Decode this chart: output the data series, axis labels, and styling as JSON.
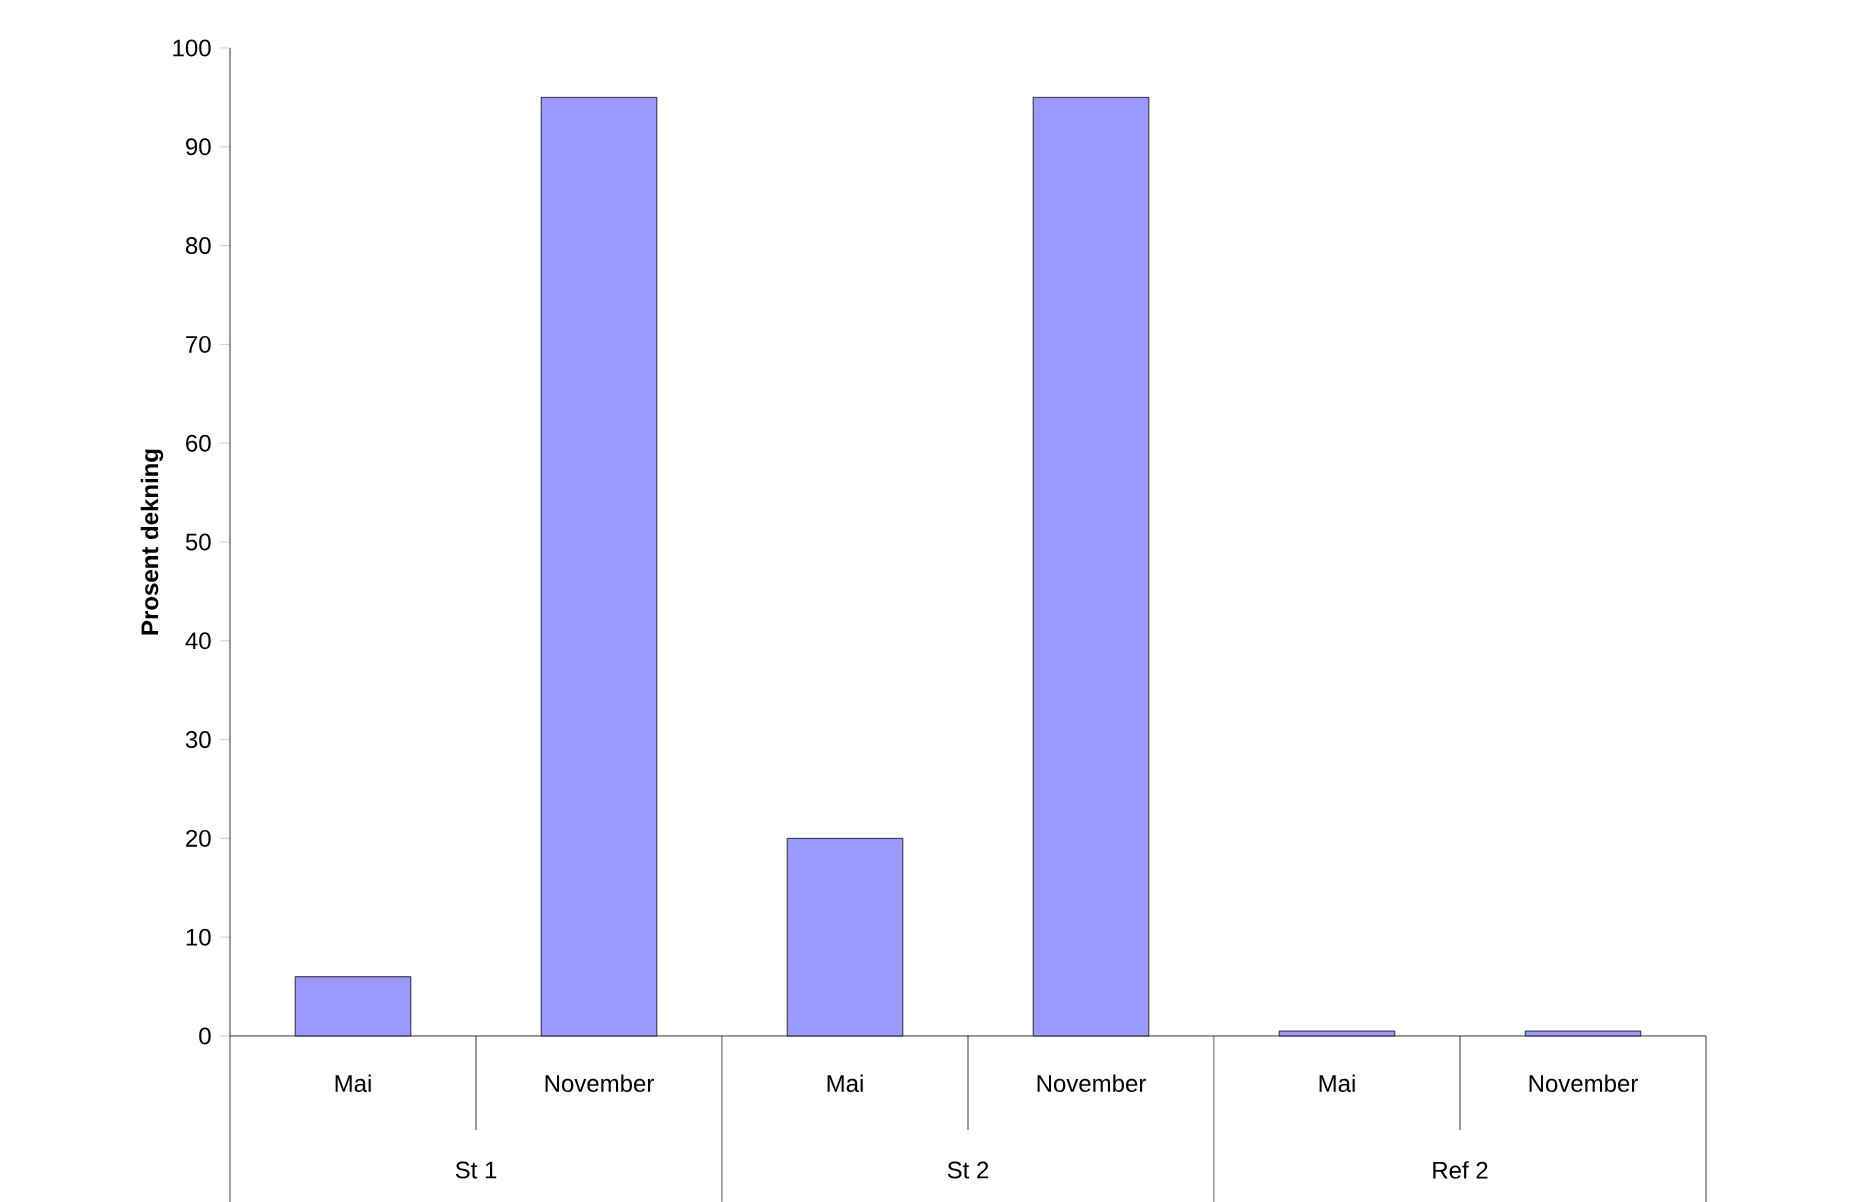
{
  "chart_data": {
    "type": "bar",
    "categories": [
      "Mai",
      "November",
      "Mai",
      "November",
      "Mai",
      "November"
    ],
    "values": [
      6,
      95,
      20,
      95,
      0.5,
      0.5
    ],
    "color": "#9999ff",
    "ylabel": "Prosent dekning",
    "ylim": [
      0,
      100
    ],
    "yticks": [
      0,
      10,
      20,
      30,
      40,
      50,
      60,
      70,
      80,
      90,
      100
    ],
    "annotations": [
      "St 1",
      "St 2",
      "Ref 2"
    ],
    "grid": false
  }
}
